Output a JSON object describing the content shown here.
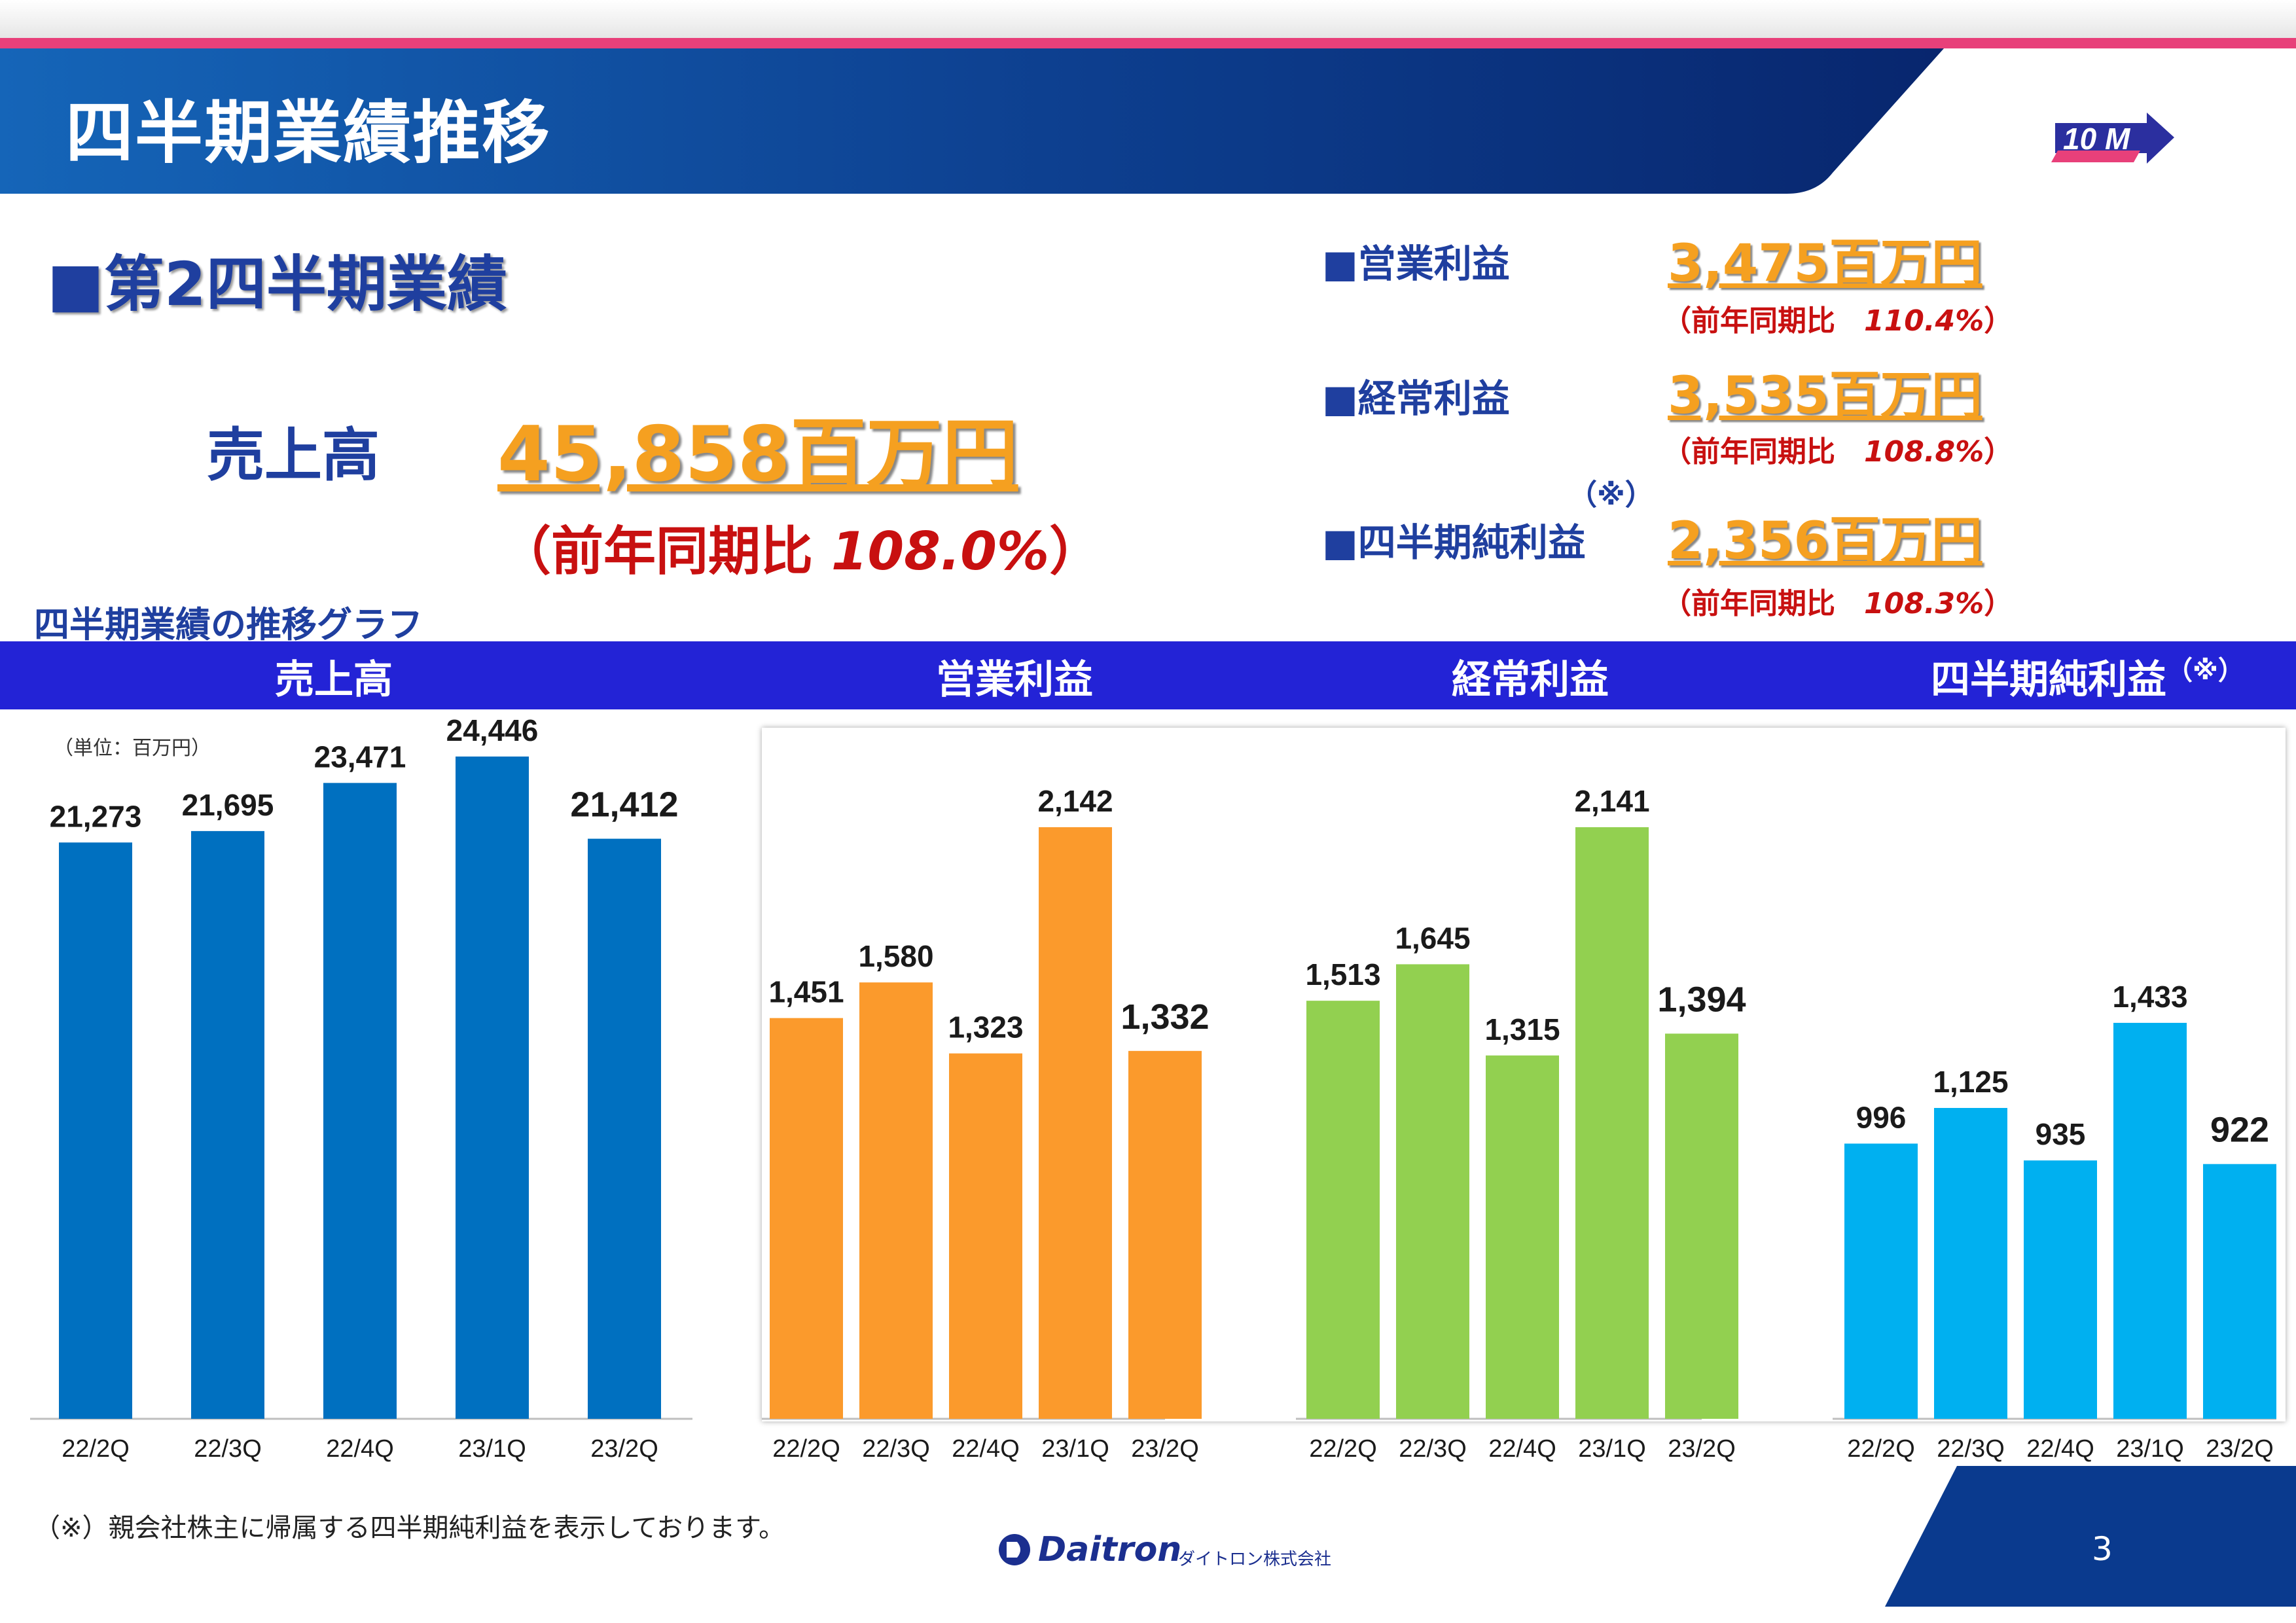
{
  "header": {
    "title": "四半期業績推移"
  },
  "summary": {
    "section_title": "■第2四半期業績",
    "sales": {
      "label": "売上高",
      "value": "45,858百万円",
      "ratio_prefix": "（前年同期比 ",
      "ratio_value": "108.0%",
      "ratio_suffix": "）"
    },
    "operating_profit": {
      "label": "■営業利益",
      "value": "3,475百万円",
      "ratio_prefix": "（前年同期比　",
      "ratio_value": "110.4%",
      "ratio_suffix": "）"
    },
    "ordinary_profit": {
      "label": "■経常利益",
      "value": "3,535百万円",
      "ratio_prefix": "（前年同期比　",
      "ratio_value": "108.8%",
      "ratio_suffix": "）"
    },
    "net_income": {
      "label": "■四半期純利益",
      "note_mark": "（※）",
      "value": "2,356百万円",
      "ratio_prefix": "（前年同期比　",
      "ratio_value": "108.3%",
      "ratio_suffix": "）"
    }
  },
  "graph_title": "四半期業績の推移グラフ",
  "unit_label": "（単位：百万円）",
  "footnote": "（※）親会社株主に帰属する四半期純利益を表示しております。",
  "logo": {
    "name": "Daitron",
    "subtitle": "ダイトロン株式会社",
    "badge": "10 M"
  },
  "page_number": "3",
  "chart_data": [
    {
      "type": "bar",
      "title": "売上高",
      "categories": [
        "22/2Q",
        "22/3Q",
        "22/4Q",
        "23/1Q",
        "23/2Q"
      ],
      "values": [
        21273,
        21695,
        23471,
        24446,
        21412
      ],
      "labels": [
        "21,273",
        "21,695",
        "23,471",
        "24,446",
        "21,412"
      ],
      "color": "#0070c0",
      "ylim": [
        0,
        26000
      ],
      "highlight_last": true
    },
    {
      "type": "bar",
      "title": "営業利益",
      "categories": [
        "22/2Q",
        "22/3Q",
        "22/4Q",
        "23/1Q",
        "23/2Q"
      ],
      "values": [
        1451,
        1580,
        1323,
        2142,
        1332
      ],
      "labels": [
        "1,451",
        "1,580",
        "1,323",
        "2,142",
        "1,332"
      ],
      "color": "#fb9a2c",
      "ylim": [
        0,
        2300
      ],
      "highlight_last": true
    },
    {
      "type": "bar",
      "title": "経常利益",
      "categories": [
        "22/2Q",
        "22/3Q",
        "22/4Q",
        "23/1Q",
        "23/2Q"
      ],
      "values": [
        1513,
        1645,
        1315,
        2141,
        1394
      ],
      "labels": [
        "1,513",
        "1,645",
        "1,315",
        "2,141",
        "1,394"
      ],
      "color": "#92d050",
      "ylim": [
        0,
        2300
      ],
      "highlight_last": true
    },
    {
      "type": "bar",
      "title": "四半期純利益",
      "title_note": "（※）",
      "categories": [
        "22/2Q",
        "22/3Q",
        "22/4Q",
        "23/1Q",
        "23/2Q"
      ],
      "values": [
        996,
        1125,
        935,
        1433,
        922
      ],
      "labels": [
        "996",
        "1,125",
        "935",
        "1,433",
        "922"
      ],
      "color": "#00b0f0",
      "ylim": [
        0,
        2300
      ],
      "highlight_last": true
    }
  ]
}
